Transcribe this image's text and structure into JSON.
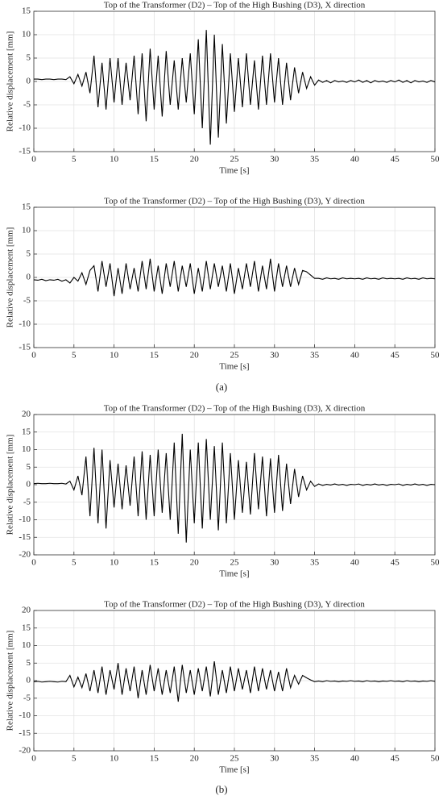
{
  "panels": [
    "(a)",
    "(b)"
  ],
  "chart_data": [
    {
      "type": "line",
      "title": "Top of the Transformer (D2) – Top of the High Bushing (D3), X direction",
      "xlabel": "Time [s]",
      "ylabel": "Relative displacement [mm]",
      "xlim": [
        0,
        50
      ],
      "xticks": [
        0,
        5,
        10,
        15,
        20,
        25,
        30,
        35,
        40,
        45,
        50
      ],
      "ylim": [
        -15,
        15
      ],
      "yticks": [
        -15,
        -10,
        -5,
        0,
        5,
        10,
        15
      ],
      "grid": true,
      "x": [
        0,
        0.5,
        1,
        1.5,
        2,
        2.5,
        3,
        3.5,
        4,
        4.5,
        5,
        5.5,
        6,
        6.5,
        7,
        7.5,
        8,
        8.5,
        9,
        9.5,
        10,
        10.5,
        11,
        11.5,
        12,
        12.5,
        13,
        13.5,
        14,
        14.5,
        15,
        15.5,
        16,
        16.5,
        17,
        17.5,
        18,
        18.5,
        19,
        19.5,
        20,
        20.5,
        21,
        21.5,
        22,
        22.5,
        23,
        23.5,
        24,
        24.5,
        25,
        25.5,
        26,
        26.5,
        27,
        27.5,
        28,
        28.5,
        29,
        29.5,
        30,
        30.5,
        31,
        31.5,
        32,
        32.5,
        33,
        33.5,
        34,
        34.5,
        35,
        35.5,
        36,
        36.5,
        37,
        37.5,
        38,
        38.5,
        39,
        39.5,
        40,
        40.5,
        41,
        41.5,
        42,
        42.5,
        43,
        43.5,
        44,
        44.5,
        45,
        45.5,
        46,
        46.5,
        47,
        47.5,
        48,
        48.5,
        49,
        49.5,
        50
      ],
      "series": [
        {
          "color": "#000000",
          "values": [
            0.5,
            0.5,
            0.4,
            0.5,
            0.5,
            0.4,
            0.5,
            0.5,
            0.4,
            1,
            -0.5,
            1.5,
            -1,
            2,
            -2.5,
            5.5,
            -5.5,
            4,
            -6,
            5,
            -4.5,
            5,
            -5,
            4,
            -4,
            5.5,
            -7,
            6,
            -8.5,
            7,
            -6,
            5.5,
            -7.5,
            6.5,
            -5,
            4.5,
            -6,
            5,
            -4.5,
            6,
            -7,
            9,
            -10,
            11,
            -13.5,
            10,
            -12,
            8,
            -9,
            6,
            -6.5,
            5,
            -5.5,
            6,
            -5,
            4.5,
            -6,
            5.5,
            -5,
            6,
            -4.5,
            5,
            -5,
            4,
            -4,
            3,
            -2.5,
            2,
            -1.5,
            1,
            -0.8,
            0.3,
            -0.2,
            0.2,
            -0.3,
            0.2,
            -0.1,
            0.1,
            -0.2,
            0.2,
            -0.1,
            0.3,
            -0.2,
            0.2,
            -0.3,
            0.2,
            -0.1,
            0.1,
            -0.2,
            0.2,
            -0.1,
            0.3,
            -0.2,
            0.2,
            -0.3,
            0.2,
            -0.1,
            0.1,
            -0.2,
            0.2,
            -0.1
          ]
        }
      ]
    },
    {
      "type": "line",
      "title": "Top of the Transformer (D2) – Top of the High Bushing (D3), Y direction",
      "xlabel": "Time [s]",
      "ylabel": "Relative displacement [mm]",
      "xlim": [
        0,
        50
      ],
      "xticks": [
        0,
        5,
        10,
        15,
        20,
        25,
        30,
        35,
        40,
        45,
        50
      ],
      "ylim": [
        -15,
        15
      ],
      "yticks": [
        -15,
        -10,
        -5,
        0,
        5,
        10,
        15
      ],
      "grid": true,
      "x": [
        0,
        0.5,
        1,
        1.5,
        2,
        2.5,
        3,
        3.5,
        4,
        4.5,
        5,
        5.5,
        6,
        6.5,
        7,
        7.5,
        8,
        8.5,
        9,
        9.5,
        10,
        10.5,
        11,
        11.5,
        12,
        12.5,
        13,
        13.5,
        14,
        14.5,
        15,
        15.5,
        16,
        16.5,
        17,
        17.5,
        18,
        18.5,
        19,
        19.5,
        20,
        20.5,
        21,
        21.5,
        22,
        22.5,
        23,
        23.5,
        24,
        24.5,
        25,
        25.5,
        26,
        26.5,
        27,
        27.5,
        28,
        28.5,
        29,
        29.5,
        30,
        30.5,
        31,
        31.5,
        32,
        32.5,
        33,
        33.5,
        34,
        34.5,
        35,
        35.5,
        36,
        36.5,
        37,
        37.5,
        38,
        38.5,
        39,
        39.5,
        40,
        40.5,
        41,
        41.5,
        42,
        42.5,
        43,
        43.5,
        44,
        44.5,
        45,
        45.5,
        46,
        46.5,
        47,
        47.5,
        48,
        48.5,
        49,
        49.5,
        50
      ],
      "series": [
        {
          "color": "#000000",
          "values": [
            -0.5,
            -0.6,
            -0.4,
            -0.7,
            -0.5,
            -0.6,
            -0.4,
            -0.8,
            -0.5,
            -1.2,
            0,
            -0.8,
            1,
            -1.5,
            1.5,
            2.5,
            -3,
            3.5,
            -2,
            3,
            -4,
            2,
            -3.5,
            3,
            -2.5,
            2,
            -3,
            3.5,
            -2.5,
            4,
            -3,
            2.5,
            -3.5,
            3,
            -2,
            3.5,
            -3,
            2.5,
            -2,
            3,
            -3.5,
            2,
            -3,
            3.5,
            -2.5,
            3,
            -2,
            2.5,
            -3,
            3,
            -3.5,
            2,
            -2.5,
            3,
            -2,
            3.5,
            -3,
            2.5,
            -2.5,
            4,
            -3,
            3,
            -2,
            2.5,
            -2,
            2,
            -1.5,
            1.5,
            1.2,
            0.5,
            -0.2,
            -0.2,
            -0.4,
            -0.1,
            -0.3,
            -0.2,
            -0.4,
            -0.1,
            -0.3,
            -0.2,
            -0.3,
            -0.2,
            -0.4,
            -0.1,
            -0.3,
            -0.2,
            -0.4,
            -0.1,
            -0.3,
            -0.2,
            -0.3,
            -0.2,
            -0.4,
            -0.1,
            -0.3,
            -0.2,
            -0.4,
            -0.1,
            -0.3,
            -0.2,
            -0.3
          ]
        }
      ]
    },
    {
      "type": "line",
      "title": "Top of the Transformer (D2) – Top of the High Bushing (D3), X direction",
      "xlabel": "Time [s]",
      "ylabel": "Relative displacement [mm]",
      "xlim": [
        0,
        50
      ],
      "xticks": [
        0,
        5,
        10,
        15,
        20,
        25,
        30,
        35,
        40,
        45,
        50
      ],
      "ylim": [
        -20,
        20
      ],
      "yticks": [
        -20,
        -15,
        -10,
        -5,
        0,
        5,
        10,
        15,
        20
      ],
      "grid": true,
      "x": [
        0,
        0.5,
        1,
        1.5,
        2,
        2.5,
        3,
        3.5,
        4,
        4.5,
        5,
        5.5,
        6,
        6.5,
        7,
        7.5,
        8,
        8.5,
        9,
        9.5,
        10,
        10.5,
        11,
        11.5,
        12,
        12.5,
        13,
        13.5,
        14,
        14.5,
        15,
        15.5,
        16,
        16.5,
        17,
        17.5,
        18,
        18.5,
        19,
        19.5,
        20,
        20.5,
        21,
        21.5,
        22,
        22.5,
        23,
        23.5,
        24,
        24.5,
        25,
        25.5,
        26,
        26.5,
        27,
        27.5,
        28,
        28.5,
        29,
        29.5,
        30,
        30.5,
        31,
        31.5,
        32,
        32.5,
        33,
        33.5,
        34,
        34.5,
        35,
        35.5,
        36,
        36.5,
        37,
        37.5,
        38,
        38.5,
        39,
        39.5,
        40,
        40.5,
        41,
        41.5,
        42,
        42.5,
        43,
        43.5,
        44,
        44.5,
        45,
        45.5,
        46,
        46.5,
        47,
        47.5,
        48,
        48.5,
        49,
        49.5,
        50
      ],
      "series": [
        {
          "color": "#000000",
          "values": [
            0.3,
            0.4,
            0.3,
            0.3,
            0.4,
            0.3,
            0.3,
            0.4,
            0.2,
            1,
            -1.5,
            2.5,
            -3,
            8,
            -9,
            10.5,
            -11,
            10,
            -12.5,
            7,
            -6.5,
            6,
            -7,
            5.5,
            -6,
            8,
            -9,
            9.5,
            -10,
            8.5,
            -9,
            10,
            -8,
            9,
            -10,
            12,
            -14,
            14.5,
            -16.5,
            10,
            -11,
            12,
            -12.5,
            13,
            -10,
            11,
            -13,
            12,
            -11,
            9,
            -10,
            7,
            -8,
            6.5,
            -8.5,
            9,
            -7,
            8,
            -9,
            7.5,
            -8,
            8.5,
            -7.5,
            6,
            -5.5,
            4.5,
            -3.5,
            2.5,
            -1.5,
            1,
            -0.5,
            0.2,
            -0.2,
            0.1,
            -0.1,
            0.2,
            -0.1,
            0.1,
            -0.2,
            0.1,
            0,
            0.2,
            -0.2,
            0.1,
            -0.1,
            0.2,
            -0.1,
            0.1,
            -0.2,
            0.1,
            0,
            0.2,
            -0.2,
            0.1,
            -0.1,
            0.2,
            -0.1,
            0.1,
            -0.2,
            0.1,
            0
          ]
        }
      ]
    },
    {
      "type": "line",
      "title": "Top of the Transformer (D2) – Top of the High Bushing (D3), Y direction",
      "xlabel": "Time [s]",
      "ylabel": "Relative displacement [mm]",
      "xlim": [
        0,
        50
      ],
      "xticks": [
        0,
        5,
        10,
        15,
        20,
        25,
        30,
        35,
        40,
        45,
        50
      ],
      "ylim": [
        -20,
        20
      ],
      "yticks": [
        -20,
        -15,
        -10,
        -5,
        0,
        5,
        10,
        15,
        20
      ],
      "grid": true,
      "x": [
        0,
        0.5,
        1,
        1.5,
        2,
        2.5,
        3,
        3.5,
        4,
        4.5,
        5,
        5.5,
        6,
        6.5,
        7,
        7.5,
        8,
        8.5,
        9,
        9.5,
        10,
        10.5,
        11,
        11.5,
        12,
        12.5,
        13,
        13.5,
        14,
        14.5,
        15,
        15.5,
        16,
        16.5,
        17,
        17.5,
        18,
        18.5,
        19,
        19.5,
        20,
        20.5,
        21,
        21.5,
        22,
        22.5,
        23,
        23.5,
        24,
        24.5,
        25,
        25.5,
        26,
        26.5,
        27,
        27.5,
        28,
        28.5,
        29,
        29.5,
        30,
        30.5,
        31,
        31.5,
        32,
        32.5,
        33,
        33.5,
        34,
        34.5,
        35,
        35.5,
        36,
        36.5,
        37,
        37.5,
        38,
        38.5,
        39,
        39.5,
        40,
        40.5,
        41,
        41.5,
        42,
        42.5,
        43,
        43.5,
        44,
        44.5,
        45,
        45.5,
        46,
        46.5,
        47,
        47.5,
        48,
        48.5,
        49,
        49.5,
        50
      ],
      "series": [
        {
          "color": "#000000",
          "values": [
            -0.3,
            -0.2,
            -0.4,
            -0.3,
            -0.2,
            -0.3,
            -0.4,
            -0.2,
            -0.3,
            1.5,
            -1.8,
            1,
            -2,
            2,
            -3,
            3,
            -3.5,
            4,
            -4,
            3,
            -2.5,
            5,
            -4,
            3.5,
            -3,
            4,
            -5,
            3,
            -4,
            4.5,
            -3,
            3.5,
            -4,
            3,
            -3.5,
            4,
            -6,
            4.5,
            -3.5,
            3,
            -4,
            3.5,
            -3,
            4,
            -4.5,
            5.5,
            -4,
            3,
            -3.5,
            4,
            -3,
            3.5,
            -2.5,
            3,
            -3.5,
            4,
            -3,
            3.5,
            -2.5,
            3,
            -3,
            2.5,
            -3,
            3.5,
            -2,
            1.5,
            -1,
            1.5,
            0.8,
            0.2,
            -0.3,
            -0.1,
            -0.3,
            0,
            -0.2,
            -0.1,
            -0.3,
            -0.1,
            -0.2,
            0,
            -0.2,
            -0.1,
            -0.3,
            0,
            -0.2,
            -0.1,
            -0.3,
            -0.1,
            -0.2,
            0,
            -0.2,
            -0.1,
            -0.3,
            0,
            -0.2,
            -0.1,
            -0.3,
            -0.1,
            -0.2,
            0,
            -0.2
          ]
        }
      ]
    }
  ]
}
